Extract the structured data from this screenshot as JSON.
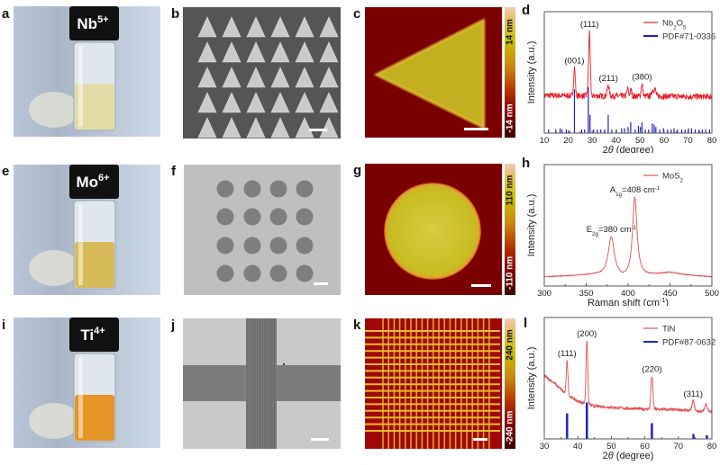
{
  "panel_labels": {
    "a": "a",
    "b": "b",
    "c": "c",
    "d": "d",
    "e": "e",
    "f": "f",
    "g": "g",
    "h": "h",
    "i": "i",
    "j": "j",
    "k": "k",
    "l": "l"
  },
  "vials": [
    {
      "symbol": "Nb",
      "charge": "5+",
      "liquid_color": "#e2d99c"
    },
    {
      "symbol": "Mo",
      "charge": "6+",
      "liquid_color": "#d6b648"
    },
    {
      "symbol": "Ti",
      "charge": "4+",
      "liquid_color": "#e58c12"
    }
  ],
  "colorbars": [
    {
      "max": "14 nm",
      "min": "-14 nm"
    },
    {
      "max": "110 nm",
      "min": "-110 nm"
    },
    {
      "max": "240 nm",
      "min": "-240 nm"
    }
  ],
  "colors": {
    "curve": "#e8202a",
    "curve_light": "#e05050",
    "reference": "#2020c8",
    "afm_background": "#7a0000",
    "afm_feature": "#d0bc20"
  },
  "chart_data": [
    {
      "type": "line",
      "panel": "d",
      "xlabel": [
        [
          "2",
          ""
        ],
        [
          "θ",
          "it"
        ],
        [
          " (degree)",
          ""
        ]
      ],
      "ylabel": "Intensity (a.u.)",
      "xlim": [
        10,
        80
      ],
      "xticks": [
        10,
        20,
        30,
        40,
        50,
        60,
        70,
        80
      ],
      "ylim": [
        0,
        1
      ],
      "legend_placement": "top-right",
      "series": [
        {
          "name": [
            [
              "Nb",
              ""
            ],
            [
              "2",
              "sub"
            ],
            [
              "O",
              ""
            ],
            [
              "5",
              "sub"
            ]
          ],
          "kind": "line",
          "color": "#e8202a",
          "baseline": [
            [
              10,
              0.31
            ],
            [
              80,
              0.3
            ]
          ],
          "noise": 0.025,
          "peaks": [
            {
              "x": 22.6,
              "h": 0.23,
              "w": 0.35
            },
            {
              "x": 28.4,
              "h": 0.12,
              "w": 0.3
            },
            {
              "x": 28.9,
              "h": 0.5,
              "w": 0.3
            },
            {
              "x": 36.7,
              "h": 0.09,
              "w": 0.4
            },
            {
              "x": 44.8,
              "h": 0.06,
              "w": 0.35
            },
            {
              "x": 46.2,
              "h": 0.05,
              "w": 0.35
            },
            {
              "x": 50.8,
              "h": 0.1,
              "w": 0.35
            },
            {
              "x": 55.2,
              "h": 0.05,
              "w": 0.4
            },
            {
              "x": 56.2,
              "h": 0.06,
              "w": 0.4
            }
          ]
        },
        {
          "name": [
            [
              "PDF#71-0336",
              ""
            ]
          ],
          "kind": "stick",
          "color": "#2020c8",
          "x": [
            11.8,
            14.8,
            16.6,
            17.4,
            19.2,
            20.6,
            22.6,
            25.6,
            26.8,
            28.4,
            29.1,
            30.6,
            32.2,
            33.6,
            35.2,
            36.7,
            38.2,
            40.1,
            42.3,
            43.5,
            45.0,
            46.1,
            48.0,
            49.3,
            50.1,
            50.8,
            52.2,
            53.6,
            55.1,
            55.9,
            56.6,
            58.2,
            59.8,
            61.5,
            63.0,
            64.2,
            65.6,
            67.4,
            68.8,
            70.2,
            71.5,
            73.0,
            74.6,
            76.0,
            77.4,
            79.0
          ],
          "values": [
            0.03,
            0.03,
            0.04,
            0.03,
            0.03,
            0.02,
            0.36,
            0.03,
            0.03,
            0.38,
            0.15,
            0.03,
            0.03,
            0.03,
            0.03,
            0.15,
            0.03,
            0.03,
            0.04,
            0.04,
            0.05,
            0.09,
            0.03,
            0.06,
            0.05,
            0.09,
            0.03,
            0.03,
            0.08,
            0.07,
            0.05,
            0.03,
            0.04,
            0.03,
            0.03,
            0.04,
            0.03,
            0.03,
            0.03,
            0.04,
            0.04,
            0.03,
            0.03,
            0.03,
            0.03,
            0.03
          ]
        }
      ],
      "annotations": [
        {
          "x": 22.6,
          "label": [
            [
              "(001)",
              ""
            ]
          ]
        },
        {
          "x": 28.9,
          "label": [
            [
              "(111)",
              ""
            ]
          ]
        },
        {
          "x": 36.8,
          "label": [
            [
              "(211)",
              ""
            ]
          ]
        },
        {
          "x": 50.8,
          "label": [
            [
              "(380)",
              ""
            ]
          ]
        }
      ]
    },
    {
      "type": "line",
      "panel": "h",
      "xlabel": [
        [
          "Raman shift (cm",
          ""
        ],
        [
          "-1",
          "sup"
        ],
        [
          ")",
          ""
        ]
      ],
      "ylabel": "Intensity (a.u.)",
      "xlim": [
        300,
        500
      ],
      "xticks": [
        300,
        350,
        400,
        450,
        500
      ],
      "ylim": [
        0,
        1
      ],
      "legend_placement": "top-right",
      "series": [
        {
          "name": [
            [
              "MoS",
              ""
            ],
            [
              "2",
              "sub"
            ]
          ],
          "kind": "line",
          "color": "#e05050",
          "baseline": [
            [
              300,
              0.075
            ],
            [
              360,
              0.09
            ],
            [
              395,
              0.05
            ],
            [
              430,
              0.09
            ],
            [
              450,
              0.11
            ],
            [
              470,
              0.09
            ],
            [
              500,
              0.075
            ]
          ],
          "noise": 0.003,
          "lorentz": [
            {
              "x": 380,
              "h": 0.33,
              "w": 4.5
            },
            {
              "x": 408,
              "h": 0.66,
              "w": 3.2
            }
          ]
        }
      ],
      "annotations": [
        {
          "x": 380,
          "label": [
            [
              "E",
              ""
            ],
            [
              "2g",
              "sub"
            ],
            [
              "=380 cm",
              ""
            ],
            [
              "-1",
              "sup"
            ]
          ]
        },
        {
          "x": 408,
          "label": [
            [
              "A",
              ""
            ],
            [
              "1g",
              "sub"
            ],
            [
              "=408 cm",
              ""
            ],
            [
              "-1",
              "sup"
            ]
          ]
        }
      ]
    },
    {
      "type": "line",
      "panel": "l",
      "xlabel": [
        [
          "2",
          ""
        ],
        [
          "θ",
          "it"
        ],
        [
          " (degree)",
          ""
        ]
      ],
      "ylabel": "Intensity (a.u.)",
      "xlim": [
        30,
        80
      ],
      "xticks": [
        30,
        40,
        50,
        60,
        70,
        80
      ],
      "ylim": [
        0,
        1
      ],
      "legend_placement": "top-right",
      "series": [
        {
          "name": [
            [
              "TiN",
              ""
            ]
          ],
          "kind": "line",
          "color": "#e05050",
          "baseline": [
            [
              30,
              0.52
            ],
            [
              33,
              0.46
            ],
            [
              36,
              0.38
            ],
            [
              40,
              0.31
            ],
            [
              45,
              0.27
            ],
            [
              55,
              0.25
            ],
            [
              70,
              0.24
            ],
            [
              80,
              0.22
            ]
          ],
          "noise": 0.012,
          "peaks": [
            {
              "x": 36.8,
              "h": 0.28,
              "w": 0.25
            },
            {
              "x": 42.7,
              "h": 0.52,
              "w": 0.25
            },
            {
              "x": 62.1,
              "h": 0.27,
              "w": 0.3
            },
            {
              "x": 74.4,
              "h": 0.08,
              "w": 0.35
            },
            {
              "x": 78.3,
              "h": 0.06,
              "w": 0.4
            }
          ]
        },
        {
          "name": [
            [
              "PDF#87-0632",
              ""
            ]
          ],
          "kind": "stick",
          "color": "#2020c8",
          "x": [
            36.8,
            42.7,
            62.1,
            74.5,
            78.5
          ],
          "values": [
            0.21,
            0.3,
            0.13,
            0.04,
            0.03
          ]
        }
      ],
      "annotations": [
        {
          "x": 36.8,
          "label": [
            [
              "(111)",
              ""
            ]
          ]
        },
        {
          "x": 42.7,
          "label": [
            [
              "(200)",
              ""
            ]
          ]
        },
        {
          "x": 62.1,
          "label": [
            [
              "(220)",
              ""
            ]
          ]
        },
        {
          "x": 74.4,
          "label": [
            [
              "(311)",
              ""
            ]
          ]
        }
      ]
    }
  ]
}
